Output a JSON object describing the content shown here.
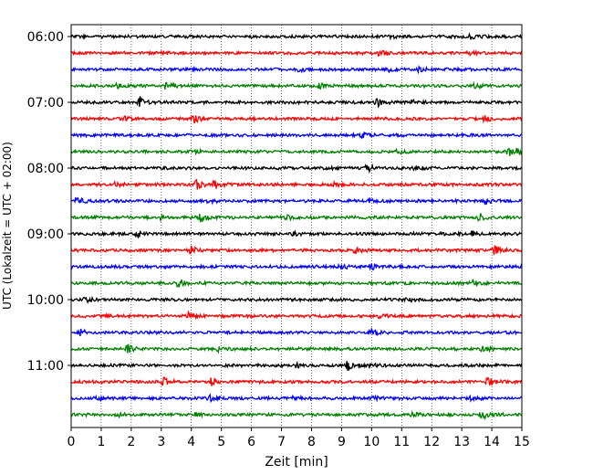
{
  "chart_data": {
    "type": "line",
    "title": "",
    "xlabel": "Zeit  [min]",
    "ylabel": "UTC (Lokalzeit = UTC + 02:00)",
    "xlim": [
      0,
      15
    ],
    "x_ticks": [
      "0",
      "1",
      "2",
      "3",
      "4",
      "5",
      "6",
      "7",
      "8",
      "9",
      "10",
      "11",
      "12",
      "13",
      "14",
      "15"
    ],
    "y_ticks": [
      "06:00",
      "07:00",
      "08:00",
      "09:00",
      "10:00",
      "11:00"
    ],
    "grid": "vertical-dotted",
    "trace_colors": [
      "#000000",
      "#ff0000",
      "#0000ff",
      "#008000"
    ],
    "traces": [
      {
        "start": "06:00",
        "events": [
          [
            10.6,
            2
          ],
          [
            13.3,
            2
          ]
        ]
      },
      {
        "start": "06:15",
        "events": [
          [
            3.0,
            1
          ],
          [
            10.2,
            4
          ],
          [
            13.3,
            2
          ]
        ]
      },
      {
        "start": "06:30",
        "events": [
          [
            7.6,
            2
          ],
          [
            10.6,
            2
          ],
          [
            11.6,
            2
          ]
        ]
      },
      {
        "start": "06:45",
        "events": [
          [
            1.5,
            2
          ],
          [
            3.2,
            4
          ],
          [
            8.3,
            3
          ],
          [
            13.5,
            2
          ]
        ]
      },
      {
        "start": "07:00",
        "events": [
          [
            2.3,
            5
          ],
          [
            10.2,
            4
          ],
          [
            11.3,
            2
          ]
        ]
      },
      {
        "start": "07:15",
        "events": [
          [
            1.8,
            2
          ],
          [
            4.1,
            4
          ],
          [
            13.7,
            4
          ]
        ]
      },
      {
        "start": "07:30",
        "events": [
          [
            9.7,
            3
          ]
        ]
      },
      {
        "start": "07:45",
        "events": [
          [
            4.0,
            4
          ],
          [
            10.9,
            2
          ],
          [
            14.6,
            3
          ],
          [
            14.9,
            3
          ]
        ]
      },
      {
        "start": "08:00",
        "events": [
          [
            9.9,
            3
          ],
          [
            11.5,
            2
          ]
        ]
      },
      {
        "start": "08:15",
        "events": [
          [
            1.5,
            2
          ],
          [
            4.2,
            5
          ],
          [
            4.8,
            4
          ],
          [
            8.8,
            2
          ]
        ]
      },
      {
        "start": "08:30",
        "events": [
          [
            0.2,
            4
          ],
          [
            4.6,
            2
          ],
          [
            10.0,
            2
          ],
          [
            13.8,
            3
          ]
        ]
      },
      {
        "start": "08:45",
        "events": [
          [
            3.0,
            2
          ],
          [
            4.3,
            4
          ],
          [
            7.2,
            2
          ],
          [
            13.6,
            4
          ]
        ]
      },
      {
        "start": "09:00",
        "events": [
          [
            2.2,
            3
          ],
          [
            7.4,
            2
          ],
          [
            13.4,
            3
          ]
        ]
      },
      {
        "start": "09:15",
        "events": [
          [
            4.0,
            4
          ],
          [
            9.5,
            3
          ],
          [
            14.1,
            4
          ]
        ]
      },
      {
        "start": "09:30",
        "events": [
          [
            9.0,
            2
          ],
          [
            10.0,
            3
          ]
        ]
      },
      {
        "start": "09:45",
        "events": [
          [
            3.6,
            4
          ],
          [
            13.4,
            4
          ]
        ]
      },
      {
        "start": "10:00",
        "events": [
          [
            0.5,
            3
          ],
          [
            11.2,
            2
          ]
        ]
      },
      {
        "start": "10:15",
        "events": [
          [
            3.9,
            4
          ],
          [
            10.3,
            2
          ]
        ]
      },
      {
        "start": "10:30",
        "events": [
          [
            0.3,
            3
          ],
          [
            10.0,
            3
          ]
        ]
      },
      {
        "start": "10:45",
        "events": [
          [
            1.9,
            4
          ],
          [
            4.9,
            2
          ],
          [
            13.7,
            3
          ]
        ]
      },
      {
        "start": "11:00",
        "events": [
          [
            7.5,
            2
          ],
          [
            9.2,
            5
          ],
          [
            10.0,
            3
          ]
        ]
      },
      {
        "start": "11:15",
        "events": [
          [
            3.1,
            4
          ],
          [
            4.7,
            4
          ],
          [
            13.9,
            5
          ]
        ]
      },
      {
        "start": "11:30",
        "events": [
          [
            0.9,
            2
          ],
          [
            4.6,
            3
          ],
          [
            7.4,
            2
          ],
          [
            10.1,
            2
          ],
          [
            13.3,
            2
          ]
        ]
      },
      {
        "start": "11:45",
        "events": [
          [
            1.6,
            2
          ],
          [
            4.2,
            2
          ],
          [
            11.4,
            2
          ],
          [
            13.7,
            4
          ]
        ]
      }
    ]
  }
}
